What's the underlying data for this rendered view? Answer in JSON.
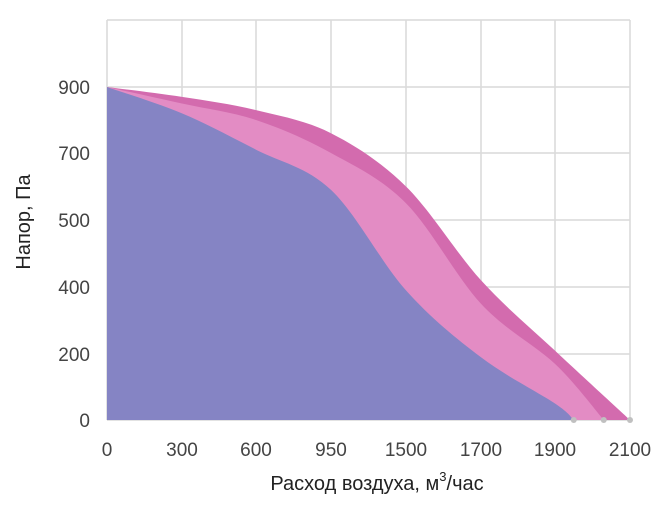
{
  "chart_data": {
    "type": "area",
    "title": "",
    "xlabel": "Расход воздуха, м",
    "xlabel_sup": "3",
    "xlabel_suffix": "/час",
    "ylabel": "Напор, Па",
    "x_tick_labels": [
      "0",
      "300",
      "600",
      "950",
      "1500",
      "1700",
      "1900",
      "2100"
    ],
    "y_tick_labels": [
      "0",
      "200",
      "400",
      "500",
      "700",
      "900"
    ],
    "grid": true,
    "legend": "none",
    "colors": {
      "background": "#ffffff",
      "grid": "#d9d9d9",
      "series_outer": "#d36bae",
      "series_middle": "#e38cc4",
      "series_inner": "#8584c4",
      "endpoint_marker": "#c0c0c0"
    },
    "series": [
      {
        "key": "outer",
        "x": [
          0,
          300,
          600,
          950,
          1500,
          1700,
          1900,
          2100
        ],
        "y": [
          900,
          870,
          830,
          760,
          600,
          410,
          210,
          0
        ]
      },
      {
        "key": "middle",
        "x": [
          0,
          300,
          600,
          950,
          1500,
          1700,
          1900,
          2030
        ],
        "y": [
          900,
          850,
          800,
          700,
          550,
          350,
          170,
          0
        ]
      },
      {
        "key": "inner",
        "x": [
          0,
          300,
          600,
          950,
          1500,
          1700,
          1900,
          1950
        ],
        "y": [
          900,
          820,
          710,
          590,
          390,
          190,
          50,
          0
        ]
      }
    ]
  }
}
